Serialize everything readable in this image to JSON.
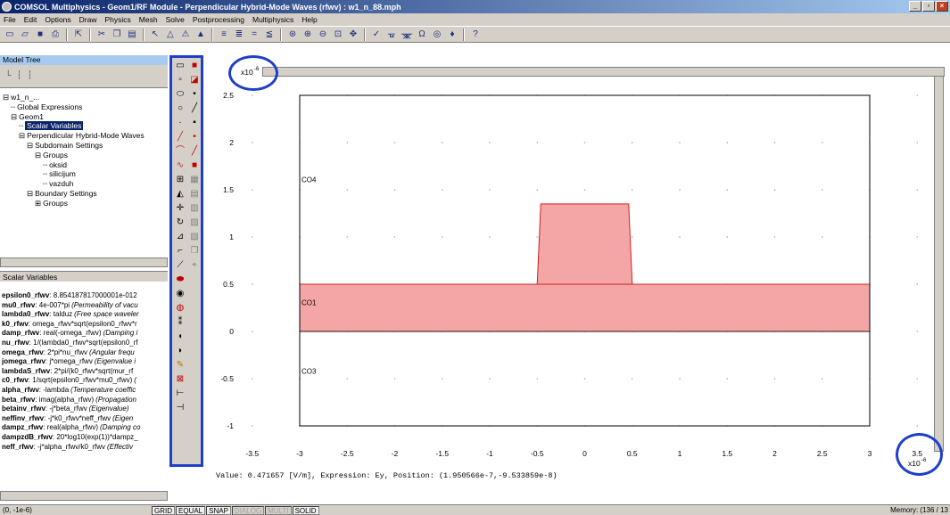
{
  "window": {
    "title": "COMSOL Multiphysics - Geom1/RF Module - Perpendicular Hybrid-Mode Waves (rfwv) : w1_n_88.mph",
    "buttons": [
      "_",
      "▫",
      "×"
    ]
  },
  "menu": [
    "File",
    "Edit",
    "Options",
    "Draw",
    "Physics",
    "Mesh",
    "Solve",
    "Postprocessing",
    "Multiphysics",
    "Help"
  ],
  "model_tree": {
    "header": "Model Tree",
    "tools": "└ ┆ ┆",
    "items": [
      {
        "indent": 0,
        "prefix": "⊟",
        "label": "w1_n_..."
      },
      {
        "indent": 1,
        "prefix": "┈",
        "label": "Global Expressions"
      },
      {
        "indent": 1,
        "prefix": "⊟",
        "label": "Geom1"
      },
      {
        "indent": 2,
        "prefix": "┈",
        "label": "Scalar Variables",
        "selected": true
      },
      {
        "indent": 2,
        "prefix": "⊟",
        "label": "Perpendicular Hybrid-Mode Waves"
      },
      {
        "indent": 3,
        "prefix": "⊟",
        "label": "Subdomain Settings"
      },
      {
        "indent": 4,
        "prefix": "⊟",
        "label": "Groups"
      },
      {
        "indent": 5,
        "prefix": "┈",
        "label": "oksid"
      },
      {
        "indent": 5,
        "prefix": "┈",
        "label": "silicijum"
      },
      {
        "indent": 5,
        "prefix": "┈",
        "label": "vazduh"
      },
      {
        "indent": 3,
        "prefix": "⊟",
        "label": "Boundary Settings"
      },
      {
        "indent": 4,
        "prefix": "⊞",
        "label": "Groups"
      }
    ]
  },
  "scalar_vars": {
    "header": "Scalar Variables",
    "items": [
      {
        "name": "epsilon0_rfwv",
        "expr": ": 8.854187817000001e-012",
        "desc": ""
      },
      {
        "name": "mu0_rfwv",
        "expr": ": 4e-007*pi",
        "desc": "(Permeability of vacu"
      },
      {
        "name": "lambda0_rfwv",
        "expr": ": talduz",
        "desc": "(Free space waveler"
      },
      {
        "name": "k0_rfwv",
        "expr": ": omega_rfwv*sqrt(epsilon0_rfwv*r",
        "desc": ""
      },
      {
        "name": "damp_rfwv",
        "expr": ": real(-omega_rfwv)",
        "desc": "(Damping i"
      },
      {
        "name": "nu_rfwv",
        "expr": ": 1/(lambda0_rfwv*sqrt(epsilon0_rf",
        "desc": ""
      },
      {
        "name": "omega_rfwv",
        "expr": ": 2*pi*nu_rfwv",
        "desc": "(Angular frequ"
      },
      {
        "name": "jomega_rfwv",
        "expr": ": j*omega_rfwv",
        "desc": "(Eigenvalue i"
      },
      {
        "name": "lambdaS_rfwv",
        "expr": ": 2*pi/(k0_rfwv*sqrt(mur_rf",
        "desc": ""
      },
      {
        "name": "c0_rfwv",
        "expr": ": 1/sqrt(epsilon0_rfwv*mu0_rfwv)",
        "desc": "("
      },
      {
        "name": "alpha_rfwv",
        "expr": ": -lambda",
        "desc": "(Temperature coeffic"
      },
      {
        "name": "beta_rfwv",
        "expr": ": imag(alpha_rfwv)",
        "desc": "(Propagation"
      },
      {
        "name": "betainv_rfwv",
        "expr": ": -j*beta_rfwv",
        "desc": "(Eigenvalue)"
      },
      {
        "name": "neffinv_rfwv",
        "expr": ": -j*k0_rfwv*neff_rfwv",
        "desc": "(Eigen"
      },
      {
        "name": "dampz_rfwv",
        "expr": ": real(alpha_rfwv)",
        "desc": "(Damping co"
      },
      {
        "name": "dampzdB_rfwv",
        "expr": ": 20*log10(exp(1))*dampz_",
        "desc": ""
      },
      {
        "name": "neff_rfwv",
        "expr": ": -j*alpha_rfwv/k0_rfwv",
        "desc": "(Effectiv"
      }
    ]
  },
  "plot": {
    "x_ticks": [
      "-3.5",
      "-3",
      "-2.5",
      "-2",
      "-1.5",
      "-1",
      "-0.5",
      "0",
      "0.5",
      "1",
      "1.5",
      "2",
      "2.5",
      "3",
      "3.5"
    ],
    "y_ticks": [
      "-1",
      "-0.5",
      "0",
      "0.5",
      "1",
      "1.5",
      "2",
      "2.5"
    ],
    "x_scale_label": "x10",
    "x_scale_exp": "-6",
    "y_scale_label": "x10",
    "y_scale_exp": "-6",
    "regions": {
      "co4": "CO4",
      "co1": "CO1",
      "co3": "CO3"
    },
    "colors": {
      "fill": "#f4a6a6",
      "stroke": "#d02020",
      "frame": "#000000",
      "annotation": "#1f3fc8"
    },
    "geometry": {
      "outer_rect": [
        -3,
        -1,
        3,
        2.5
      ],
      "ridge": [
        -0.5,
        0.5,
        0.5,
        1.35
      ],
      "slab": [
        -3,
        0,
        3,
        0.5
      ]
    }
  },
  "value_line": "Value: 0.471657 [V/m], Expression: Ey, Position: (1.950566e-7,-9.533859e-8)",
  "status": {
    "coords": "(0, -1e-6)",
    "toggles": [
      {
        "label": "GRID",
        "on": true
      },
      {
        "label": "EQUAL",
        "on": true
      },
      {
        "label": "SNAP",
        "on": true
      },
      {
        "label": "DIALOG",
        "on": false
      },
      {
        "label": "MULTI",
        "on": false
      },
      {
        "label": "SOLID",
        "on": true
      }
    ],
    "memory": "Memory: (136 / 13"
  }
}
